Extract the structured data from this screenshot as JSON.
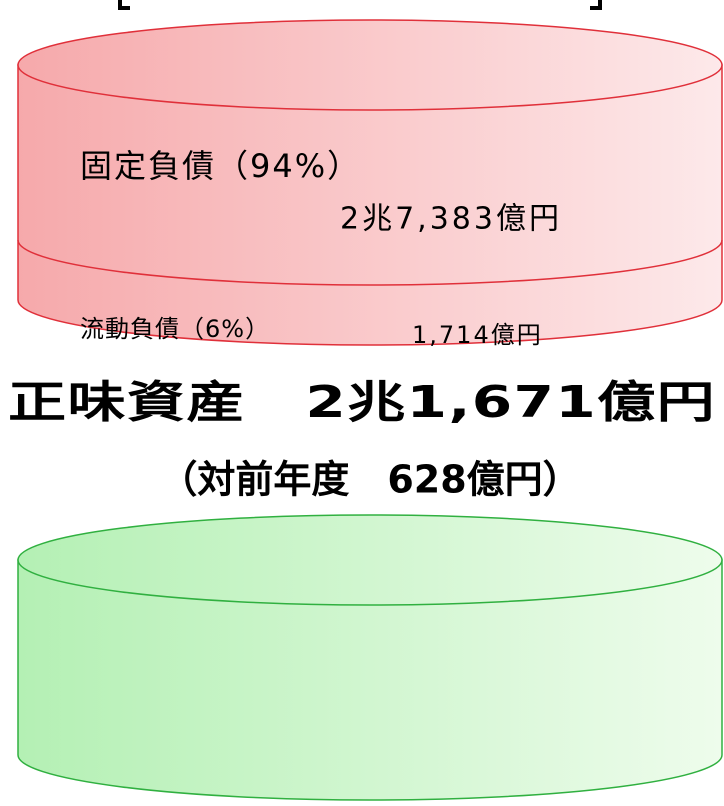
{
  "liabilities": {
    "fixed": {
      "label": "固定負債（94%）",
      "amount": "2兆7,383億円"
    },
    "current": {
      "label": "流動負債（6%）",
      "amount": "1,714億円"
    }
  },
  "net_assets": {
    "title": "正味資産　2兆1,671億円",
    "change": "（対前年度　628億円）"
  }
}
